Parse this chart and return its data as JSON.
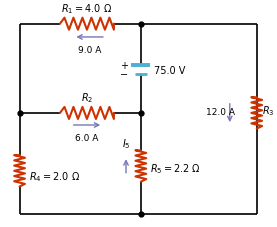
{
  "bg_color": "#ffffff",
  "wire_color": "#000000",
  "resistor_color": "#cc3300",
  "battery_color": "#4ab0d4",
  "arrow_color": "#7777bb",
  "dot_color": "#000000",
  "text_color": "#000000",
  "labels": {
    "R1": "$R_1 = 4.0\\ \\Omega$",
    "R2": "$R_2$",
    "R3": "$R_3$",
    "R4": "$R_4 = 2.0\\ \\Omega$",
    "R5": "$R_5 = 2.2\\ \\Omega$",
    "battery": "75.0 V",
    "I1": "9.0 A",
    "I2": "6.0 A",
    "I3": "12.0 A",
    "I5": "$I_5$"
  }
}
